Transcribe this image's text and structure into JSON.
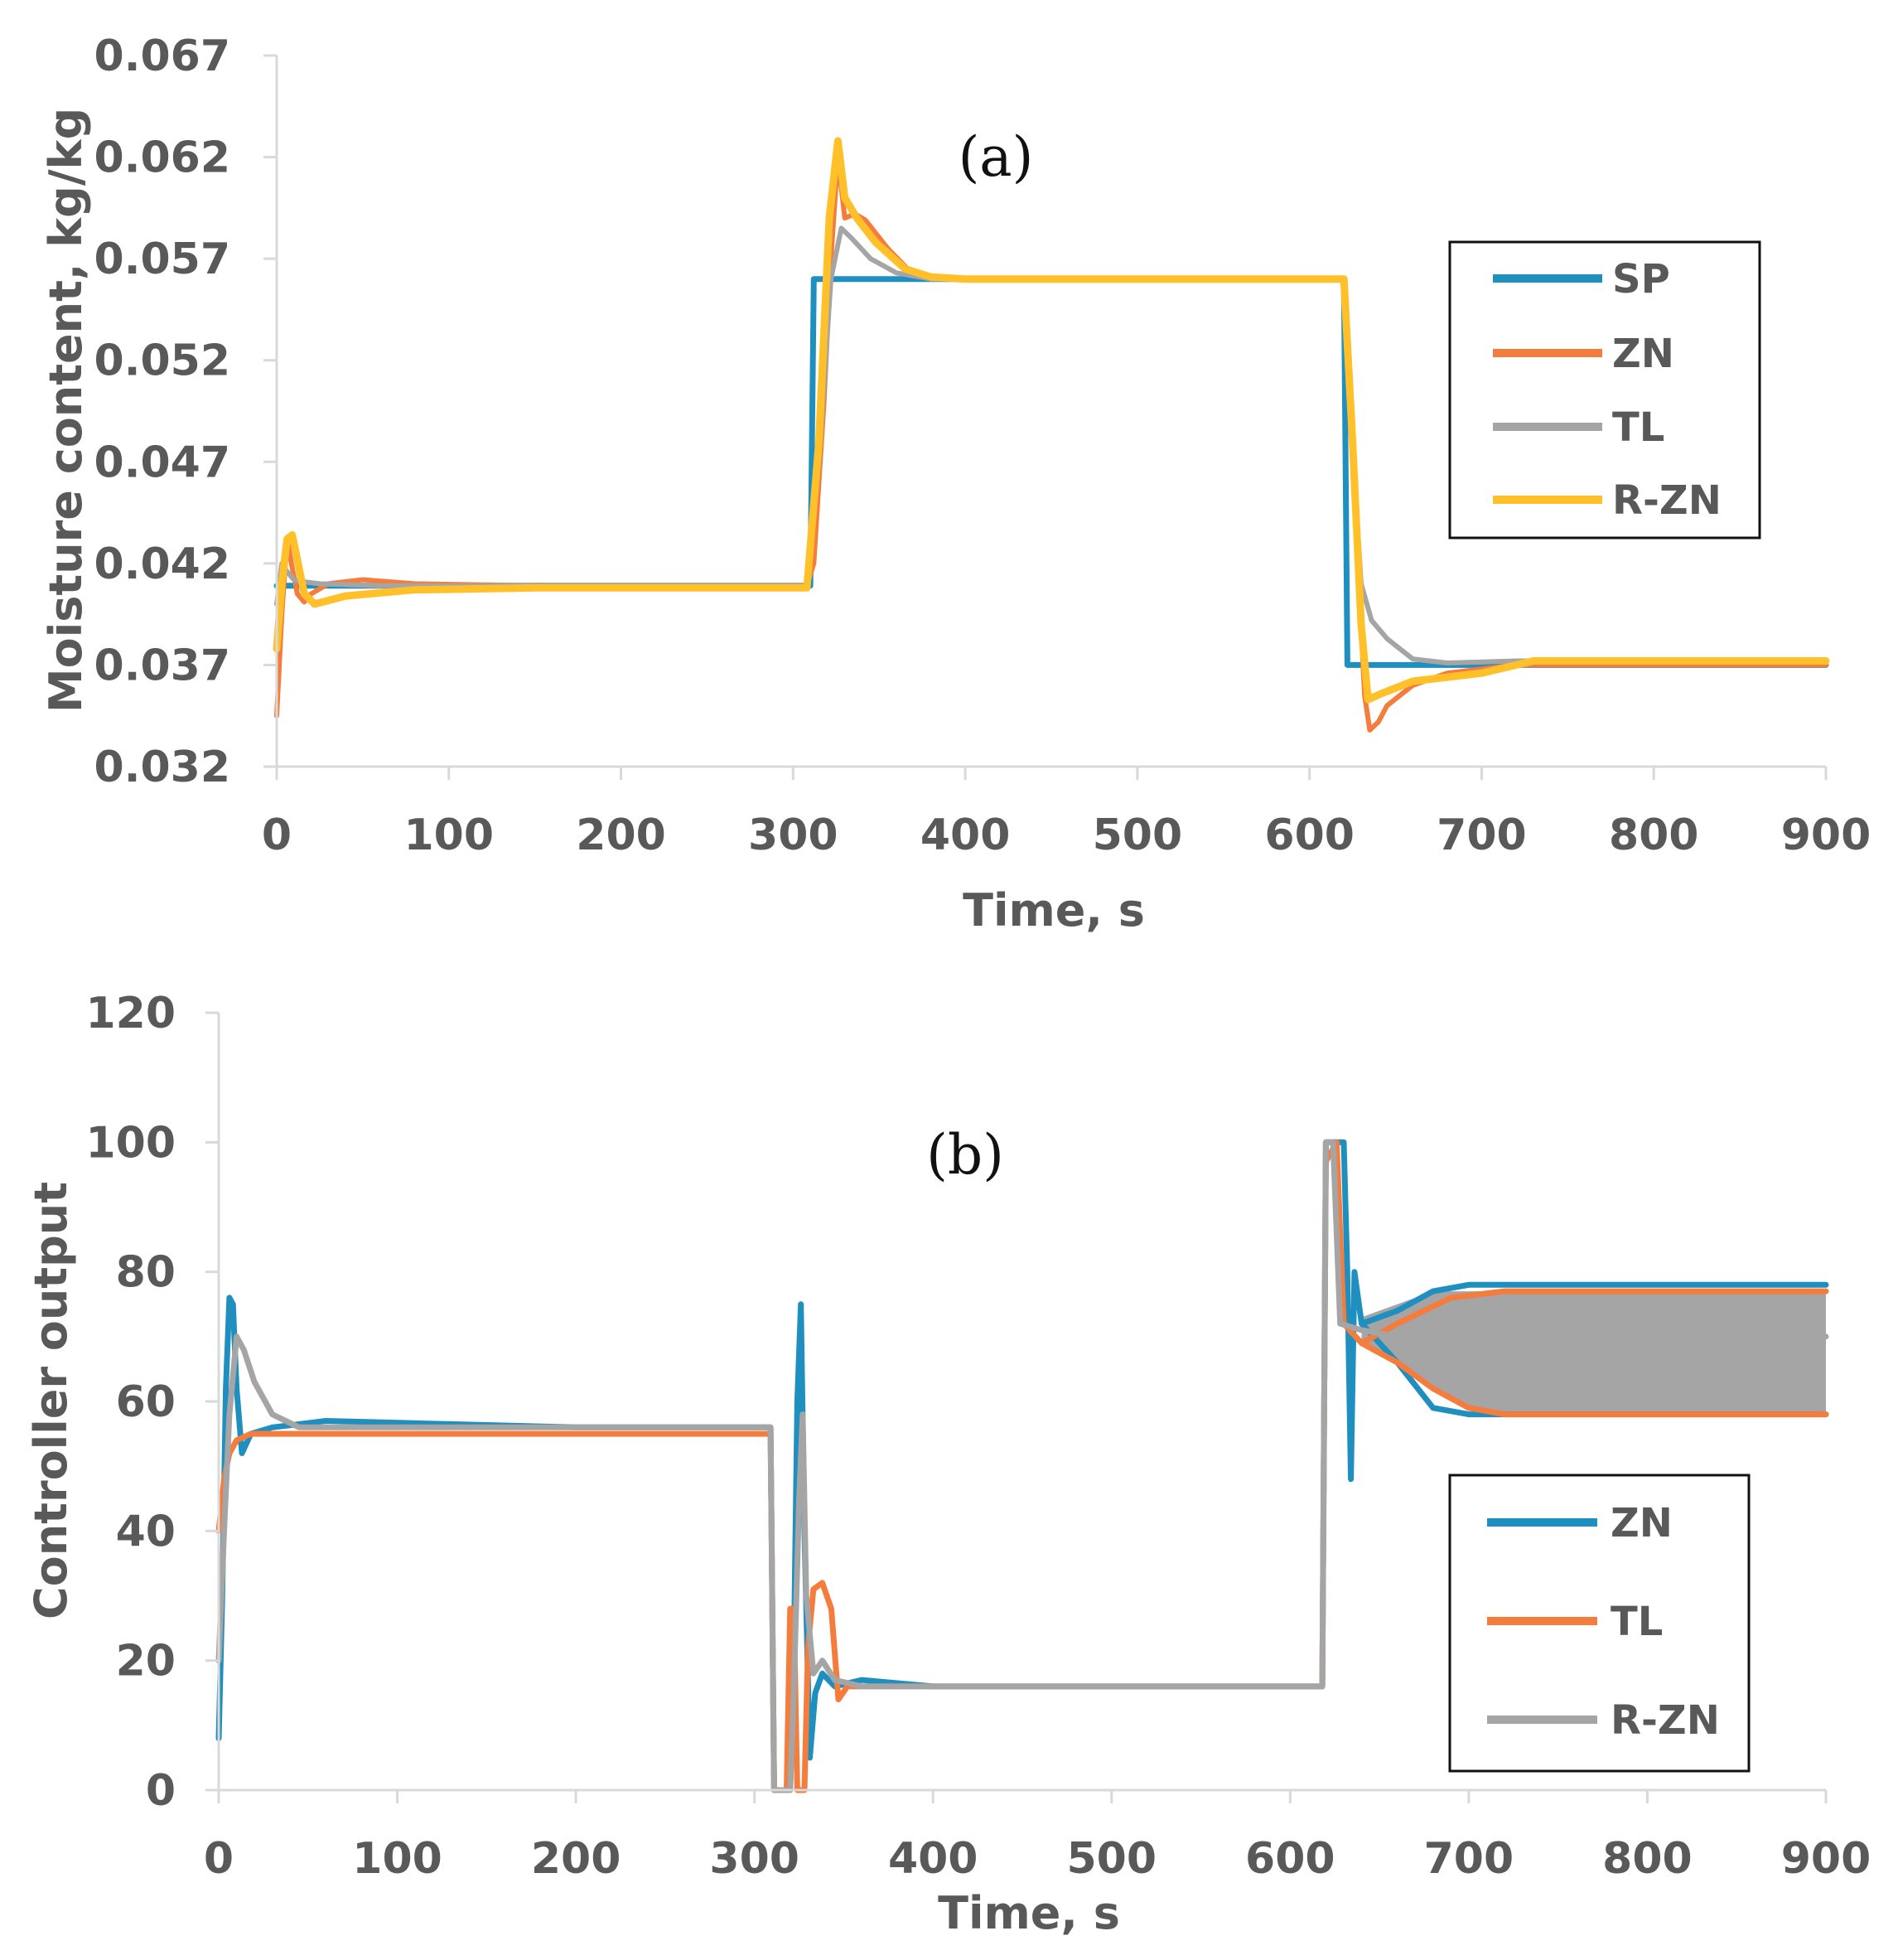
{
  "chart_data": [
    {
      "type": "line",
      "panel": "(a)",
      "title": "",
      "xlabel": "Time, s",
      "ylabel": "Moisture content, kg/kg",
      "xlim": [
        0,
        900
      ],
      "ylim": [
        0.032,
        0.067
      ],
      "xticks": [
        "0",
        "100",
        "200",
        "300",
        "400",
        "500",
        "600",
        "700",
        "800",
        "900"
      ],
      "yticks": [
        "0.032",
        "0.037",
        "0.042",
        "0.047",
        "0.052",
        "0.057",
        "0.062",
        "0.067"
      ],
      "grid": false,
      "legend_position": "right",
      "series": [
        {
          "name": "SP",
          "color": "#1f8fbf",
          "width": 7,
          "points": [
            [
              0,
              0.0409
            ],
            [
              310,
              0.0409
            ],
            [
              312,
              0.056
            ],
            [
              620,
              0.056
            ],
            [
              622,
              0.037
            ],
            [
              900,
              0.037
            ]
          ]
        },
        {
          "name": "ZN",
          "color": "#f47c3c",
          "width": 6,
          "points": [
            [
              0,
              0.0345
            ],
            [
              3,
              0.0395
            ],
            [
              6,
              0.0432
            ],
            [
              9,
              0.0418
            ],
            [
              12,
              0.0405
            ],
            [
              16,
              0.0401
            ],
            [
              20,
              0.0405
            ],
            [
              30,
              0.041
            ],
            [
              50,
              0.0412
            ],
            [
              80,
              0.041
            ],
            [
              150,
              0.0409
            ],
            [
              308,
              0.0409
            ],
            [
              312,
              0.042
            ],
            [
              318,
              0.05
            ],
            [
              322,
              0.057
            ],
            [
              326,
              0.062
            ],
            [
              330,
              0.059
            ],
            [
              336,
              0.0592
            ],
            [
              342,
              0.0589
            ],
            [
              355,
              0.0575
            ],
            [
              370,
              0.0562
            ],
            [
              400,
              0.056
            ],
            [
              620,
              0.056
            ],
            [
              624,
              0.05
            ],
            [
              628,
              0.042
            ],
            [
              632,
              0.0355
            ],
            [
              635,
              0.0338
            ],
            [
              640,
              0.0342
            ],
            [
              645,
              0.035
            ],
            [
              660,
              0.036
            ],
            [
              680,
              0.0366
            ],
            [
              720,
              0.037
            ],
            [
              900,
              0.037
            ]
          ]
        },
        {
          "name": "TL",
          "color": "#a5a5a5",
          "width": 6,
          "points": [
            [
              0,
              0.04
            ],
            [
              3,
              0.042
            ],
            [
              6,
              0.0416
            ],
            [
              10,
              0.0412
            ],
            [
              15,
              0.0411
            ],
            [
              25,
              0.041
            ],
            [
              60,
              0.0409
            ],
            [
              308,
              0.0409
            ],
            [
              315,
              0.047
            ],
            [
              322,
              0.056
            ],
            [
              328,
              0.0585
            ],
            [
              334,
              0.058
            ],
            [
              345,
              0.057
            ],
            [
              360,
              0.0563
            ],
            [
              380,
              0.056
            ],
            [
              620,
              0.056
            ],
            [
              624,
              0.049
            ],
            [
              630,
              0.041
            ],
            [
              636,
              0.0392
            ],
            [
              645,
              0.0383
            ],
            [
              660,
              0.0373
            ],
            [
              680,
              0.0371
            ],
            [
              720,
              0.0372
            ],
            [
              900,
              0.0372
            ]
          ]
        },
        {
          "name": "R-ZN",
          "color": "#ffc02a",
          "width": 9,
          "points": [
            [
              0,
              0.0378
            ],
            [
              3,
              0.041
            ],
            [
              6,
              0.0432
            ],
            [
              9,
              0.0434
            ],
            [
              12,
              0.0422
            ],
            [
              16,
              0.0405
            ],
            [
              22,
              0.04
            ],
            [
              40,
              0.0404
            ],
            [
              80,
              0.0407
            ],
            [
              150,
              0.0408
            ],
            [
              308,
              0.0408
            ],
            [
              315,
              0.048
            ],
            [
              321,
              0.059
            ],
            [
              326,
              0.0628
            ],
            [
              330,
              0.06
            ],
            [
              337,
              0.059
            ],
            [
              348,
              0.0578
            ],
            [
              365,
              0.0565
            ],
            [
              380,
              0.0561
            ],
            [
              400,
              0.056
            ],
            [
              620,
              0.056
            ],
            [
              625,
              0.048
            ],
            [
              630,
              0.039
            ],
            [
              634,
              0.0353
            ],
            [
              642,
              0.0356
            ],
            [
              660,
              0.0362
            ],
            [
              680,
              0.0364
            ],
            [
              700,
              0.0366
            ],
            [
              730,
              0.0372
            ],
            [
              900,
              0.0372
            ]
          ]
        }
      ]
    },
    {
      "type": "line",
      "panel": "(b)",
      "title": "",
      "xlabel": "Time, s",
      "ylabel": "Controller output",
      "xlim": [
        0,
        900
      ],
      "ylim": [
        0,
        120
      ],
      "xticks": [
        "0",
        "100",
        "200",
        "300",
        "400",
        "500",
        "600",
        "700",
        "800",
        "900"
      ],
      "yticks": [
        "0",
        "20",
        "40",
        "60",
        "80",
        "100",
        "120"
      ],
      "grid": false,
      "legend_position": "right",
      "series": [
        {
          "name": "ZN",
          "color": "#1f8fbf",
          "width": 7,
          "points": [
            [
              0,
              8
            ],
            [
              2,
              30
            ],
            [
              4,
              62
            ],
            [
              6,
              76
            ],
            [
              8,
              75
            ],
            [
              10,
              62
            ],
            [
              13,
              52
            ],
            [
              18,
              55
            ],
            [
              30,
              56
            ],
            [
              60,
              57
            ],
            [
              200,
              56
            ],
            [
              305,
              56
            ],
            [
              309,
              56
            ],
            [
              311,
              0
            ],
            [
              320,
              0
            ],
            [
              322,
              20
            ],
            [
              324,
              60
            ],
            [
              326,
              75
            ],
            [
              328,
              40
            ],
            [
              331,
              5
            ],
            [
              334,
              15
            ],
            [
              338,
              18
            ],
            [
              345,
              16
            ],
            [
              360,
              17
            ],
            [
              400,
              16
            ],
            [
              618,
              16
            ],
            [
              620,
              100
            ],
            [
              630,
              100
            ],
            [
              632,
              80
            ],
            [
              634,
              48
            ],
            [
              636,
              80
            ],
            [
              640,
              72
            ],
            [
              660,
              74
            ],
            [
              680,
              77
            ],
            [
              700,
              78
            ],
            [
              900,
              78
            ]
          ]
        },
        {
          "name": "ZN",
          "color": "#1f8fbf",
          "width": 7,
          "points": [
            [
              640,
              72
            ],
            [
              660,
              66
            ],
            [
              680,
              59
            ],
            [
              700,
              58
            ],
            [
              900,
              58
            ]
          ]
        },
        {
          "name": "TL",
          "color": "#f47c3c",
          "width": 7,
          "points": [
            [
              0,
              40
            ],
            [
              3,
              48
            ],
            [
              6,
              52
            ],
            [
              10,
              54
            ],
            [
              18,
              55
            ],
            [
              40,
              55
            ],
            [
              100,
              55
            ],
            [
              305,
              55
            ],
            [
              309,
              55
            ],
            [
              311,
              0
            ],
            [
              318,
              0
            ],
            [
              320,
              28
            ],
            [
              322,
              28
            ],
            [
              324,
              0
            ],
            [
              328,
              0
            ],
            [
              330,
              22
            ],
            [
              333,
              31
            ],
            [
              338,
              32
            ],
            [
              343,
              28
            ],
            [
              347,
              14
            ],
            [
              352,
              16
            ],
            [
              365,
              16
            ],
            [
              400,
              16
            ],
            [
              618,
              16
            ],
            [
              620,
              97
            ],
            [
              626,
              100
            ],
            [
              630,
              72
            ],
            [
              640,
              69
            ],
            [
              660,
              72
            ],
            [
              690,
              76
            ],
            [
              720,
              77
            ],
            [
              900,
              77
            ]
          ]
        },
        {
          "name": "TL",
          "color": "#f47c3c",
          "width": 7,
          "points": [
            [
              640,
              69
            ],
            [
              660,
              66
            ],
            [
              680,
              62
            ],
            [
              700,
              59
            ],
            [
              720,
              58
            ],
            [
              900,
              58
            ]
          ]
        },
        {
          "name": "R-ZN",
          "color": "#a5a5a5",
          "width": 7,
          "points": [
            [
              0,
              20
            ],
            [
              3,
              40
            ],
            [
              6,
              58
            ],
            [
              10,
              70
            ],
            [
              14,
              68
            ],
            [
              20,
              63
            ],
            [
              30,
              58
            ],
            [
              45,
              56
            ],
            [
              80,
              56
            ],
            [
              305,
              56
            ],
            [
              309,
              56
            ],
            [
              311,
              0
            ],
            [
              320,
              0
            ],
            [
              322,
              15
            ],
            [
              325,
              45
            ],
            [
              327,
              58
            ],
            [
              329,
              30
            ],
            [
              333,
              18
            ],
            [
              338,
              20
            ],
            [
              345,
              17
            ],
            [
              360,
              16
            ],
            [
              400,
              16
            ],
            [
              618,
              16
            ],
            [
              620,
              100
            ],
            [
              624,
              100
            ],
            [
              628,
              72
            ],
            [
              640,
              71
            ],
            [
              660,
              70
            ],
            [
              700,
              70
            ],
            [
              900,
              70
            ]
          ]
        }
      ],
      "band": {
        "name": "R-ZN",
        "color": "#a5a5a5",
        "upper": [
          [
            640,
            73
          ],
          [
            660,
            75
          ],
          [
            680,
            77
          ],
          [
            700,
            77
          ],
          [
            900,
            77
          ]
        ],
        "lower": [
          [
            640,
            69
          ],
          [
            660,
            66
          ],
          [
            680,
            62
          ],
          [
            700,
            59
          ],
          [
            720,
            58
          ],
          [
            900,
            58
          ]
        ]
      }
    }
  ],
  "legends": [
    {
      "items": [
        {
          "label": "SP",
          "color": "#1f8fbf"
        },
        {
          "label": "ZN",
          "color": "#f47c3c"
        },
        {
          "label": "TL",
          "color": "#a5a5a5"
        },
        {
          "label": "R-ZN",
          "color": "#ffc02a"
        }
      ]
    },
    {
      "items": [
        {
          "label": "ZN",
          "color": "#1f8fbf"
        },
        {
          "label": "TL",
          "color": "#f47c3c"
        },
        {
          "label": "R-ZN",
          "color": "#a5a5a5"
        }
      ]
    }
  ],
  "colors": {
    "axis": "#d9d9d9",
    "text": "#595959"
  }
}
